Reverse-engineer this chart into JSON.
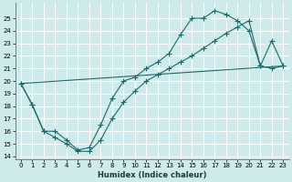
{
  "xlabel": "Humidex (Indice chaleur)",
  "bg_color": "#ceeaea",
  "grid_color": "#ffffff",
  "line_color": "#1a6b6b",
  "xticks": [
    0,
    1,
    2,
    3,
    4,
    5,
    6,
    7,
    8,
    9,
    10,
    11,
    12,
    13,
    14,
    15,
    16,
    17,
    18,
    19,
    20,
    21,
    22,
    23
  ],
  "yticks": [
    14,
    15,
    16,
    17,
    18,
    19,
    20,
    21,
    22,
    23,
    24,
    25
  ],
  "line1_x": [
    0,
    1,
    2,
    3,
    4,
    5,
    6,
    7,
    8,
    9,
    10,
    11,
    12,
    13,
    14,
    15,
    16,
    17,
    18,
    19,
    20,
    21,
    22,
    23
  ],
  "line1_y": [
    19.8,
    18.1,
    16.0,
    16.0,
    15.3,
    14.5,
    14.7,
    16.5,
    18.6,
    20.0,
    20.3,
    21.0,
    21.5,
    22.2,
    23.7,
    25.0,
    25.0,
    25.6,
    25.3,
    24.8,
    24.0,
    21.2,
    23.2,
    21.2
  ],
  "line2_x": [
    0,
    1,
    2,
    3,
    4,
    5,
    6,
    7,
    8,
    9,
    10,
    11,
    12,
    13,
    14,
    15,
    16,
    17,
    18,
    19,
    20,
    21,
    22,
    23
  ],
  "line2_y": [
    19.8,
    18.1,
    16.0,
    15.5,
    15.0,
    14.4,
    14.4,
    15.3,
    17.0,
    18.3,
    19.2,
    20.0,
    20.5,
    21.0,
    21.5,
    22.0,
    22.6,
    23.2,
    23.8,
    24.3,
    24.8,
    21.2,
    21.0,
    21.2
  ],
  "xlim": [
    -0.5,
    23.5
  ],
  "ylim": [
    13.8,
    26.2
  ],
  "xlabel_fontsize": 6.0,
  "tick_fontsize": 5.0
}
